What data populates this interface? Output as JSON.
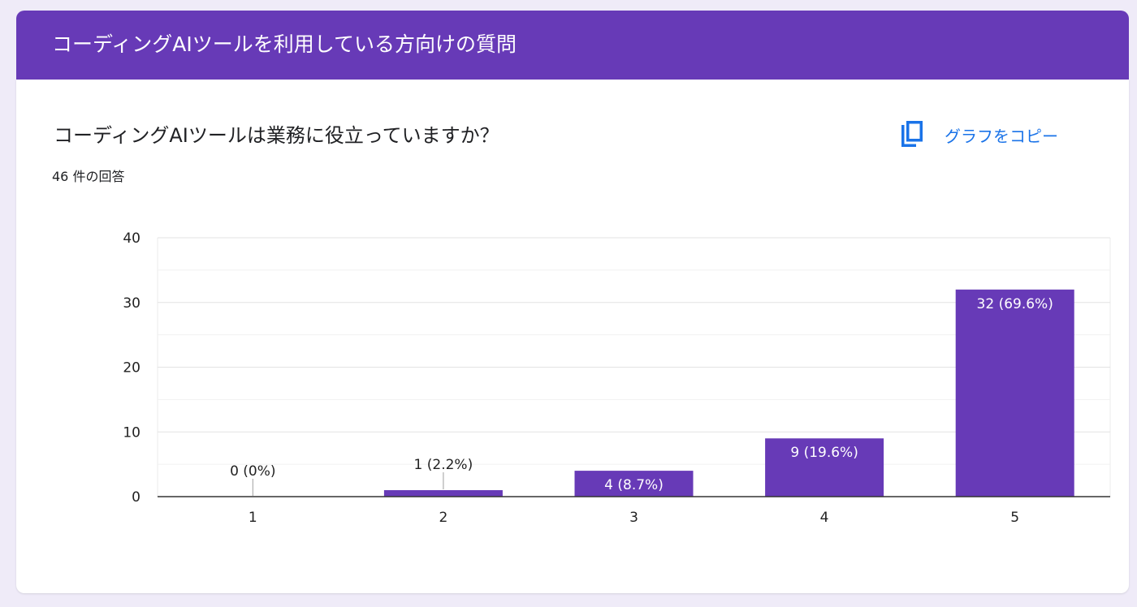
{
  "section": {
    "title": "コーディングAIツールを利用している方向けの質問"
  },
  "question": {
    "title": "コーディングAIツールは業務に役立っていますか？",
    "response_count": "46 件の回答"
  },
  "toolbar": {
    "copy_chart_label": "グラフをコピー",
    "copy_icon": "copy-icon"
  },
  "colors": {
    "header": "#673ab7",
    "bar": "#673ab7",
    "link": "#1a73e8",
    "background": "#efebf8"
  },
  "chart_data": {
    "type": "bar",
    "categories": [
      "1",
      "2",
      "3",
      "4",
      "5"
    ],
    "values": [
      0,
      1,
      4,
      9,
      32
    ],
    "data_labels": [
      "0 (0%)",
      "1 (2.2%)",
      "4 (8.7%)",
      "9 (19.6%)",
      "32 (69.6%)"
    ],
    "y_ticks": [
      "0",
      "10",
      "20",
      "30",
      "40"
    ],
    "ylim": [
      0,
      40
    ],
    "grid": true,
    "title": "",
    "xlabel": "",
    "ylabel": ""
  }
}
